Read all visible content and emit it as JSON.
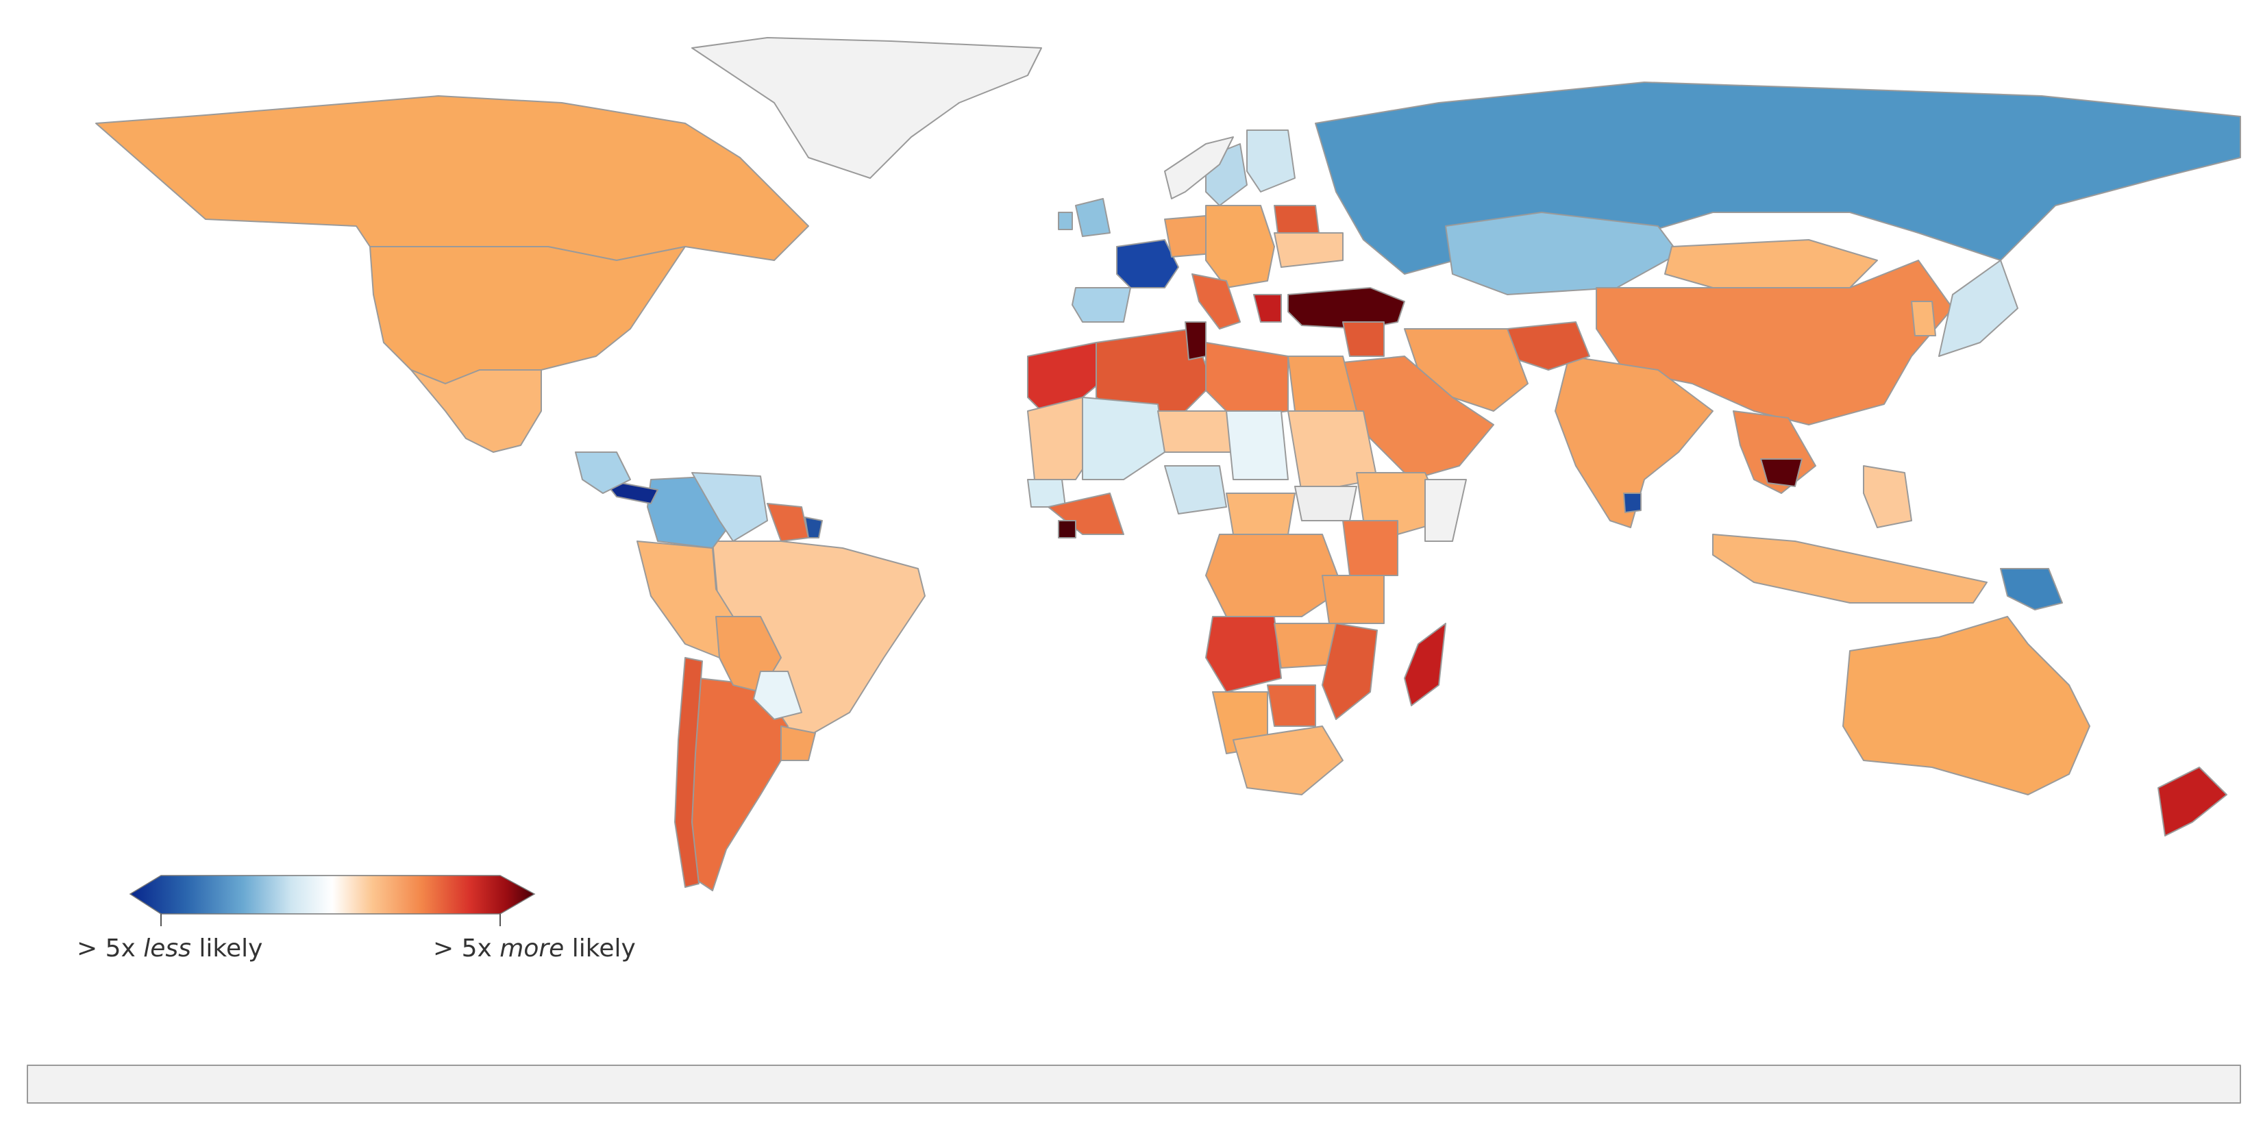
{
  "legend": {
    "left_prefix": "> 5x ",
    "left_emph": "less",
    "left_suffix": " likely",
    "right_prefix": "> 5x ",
    "right_emph": "more",
    "right_suffix": " likely",
    "colorscale": [
      "#08268c",
      "#2b66ae",
      "#6aa9d2",
      "#cfe6f1",
      "#ffffff",
      "#fcc58f",
      "#f3874a",
      "#d8322a",
      "#9b0c12",
      "#4a0008"
    ]
  },
  "palette": {
    "ocean": "#ffffff",
    "no_data": "#f2f2f2",
    "border": "#9a9a9a"
  },
  "countries": [
    {
      "name": "Canada",
      "color": "#f9aa5f"
    },
    {
      "name": "United States",
      "color": "#f9aa5f"
    },
    {
      "name": "Mexico",
      "color": "#fbb776"
    },
    {
      "name": "Greenland",
      "color": "#f2f2f2"
    },
    {
      "name": "Brazil",
      "color": "#fcc99a"
    },
    {
      "name": "Argentina",
      "color": "#eb6f3f"
    },
    {
      "name": "Chile",
      "color": "#e05a35"
    },
    {
      "name": "Peru",
      "color": "#fbb776"
    },
    {
      "name": "Colombia",
      "color": "#72b0d9"
    },
    {
      "name": "Venezuela",
      "color": "#bcdcee"
    },
    {
      "name": "Bolivia",
      "color": "#f7a25d"
    },
    {
      "name": "Paraguay",
      "color": "#e8f4f9"
    },
    {
      "name": "Uruguay",
      "color": "#f7a25d"
    },
    {
      "name": "Guyana",
      "color": "#e86a3e"
    },
    {
      "name": "French Guiana",
      "color": "#2050a0"
    },
    {
      "name": "Panama",
      "color": "#0e2a8c"
    },
    {
      "name": "Central America",
      "color": "#a9d2e9"
    },
    {
      "name": "Russia",
      "color": "#5096c5"
    },
    {
      "name": "Kazakhstan",
      "color": "#8fc2df"
    },
    {
      "name": "Mongolia",
      "color": "#fbb776"
    },
    {
      "name": "China",
      "color": "#f2894e"
    },
    {
      "name": "India",
      "color": "#f7a25d"
    },
    {
      "name": "Afghanistan",
      "color": "#e05a35"
    },
    {
      "name": "Iran",
      "color": "#f7a25d"
    },
    {
      "name": "Saudi Arabia",
      "color": "#f2894e"
    },
    {
      "name": "Turkey",
      "color": "#5a0008"
    },
    {
      "name": "Syria",
      "color": "#e05a35"
    },
    {
      "name": "Southeast Asia",
      "color": "#f2894e"
    },
    {
      "name": "Cambodia",
      "color": "#5a0008"
    },
    {
      "name": "Japan",
      "color": "#cfe6f1"
    },
    {
      "name": "Korea",
      "color": "#fbb776"
    },
    {
      "name": "Indonesia",
      "color": "#fbb776"
    },
    {
      "name": "Philippines",
      "color": "#fcc99a"
    },
    {
      "name": "Papua New Guinea",
      "color": "#3f85bd"
    },
    {
      "name": "Sri Lanka",
      "color": "#1c4aa0"
    },
    {
      "name": "Australia",
      "color": "#f9aa5f"
    },
    {
      "name": "New Zealand",
      "color": "#c41e1e"
    },
    {
      "name": "France",
      "color": "#1946a6"
    },
    {
      "name": "Spain",
      "color": "#a9d2e9"
    },
    {
      "name": "Sweden",
      "color": "#b7d8ea"
    },
    {
      "name": "Finland",
      "color": "#cfe6f1"
    },
    {
      "name": "Norway",
      "color": "#f2f2f2"
    },
    {
      "name": "United Kingdom",
      "color": "#8fc2df"
    },
    {
      "name": "Ireland",
      "color": "#8fc2df"
    },
    {
      "name": "Germany",
      "color": "#f7a25d"
    },
    {
      "name": "Central Europe",
      "color": "#f9aa5f"
    },
    {
      "name": "Italy",
      "color": "#e8683d"
    },
    {
      "name": "Greece",
      "color": "#c41e1e"
    },
    {
      "name": "Ukraine",
      "color": "#fcc99a"
    },
    {
      "name": "Belarus",
      "color": "#e05a35"
    },
    {
      "name": "Morocco",
      "color": "#d8322a"
    },
    {
      "name": "Algeria",
      "color": "#e05a35"
    },
    {
      "name": "Tunisia",
      "color": "#5a0008"
    },
    {
      "name": "Libya",
      "color": "#f07b47"
    },
    {
      "name": "Egypt",
      "color": "#f7a25d"
    },
    {
      "name": "Mauritania",
      "color": "#fcc99a"
    },
    {
      "name": "Mali",
      "color": "#d7ecf4"
    },
    {
      "name": "Niger",
      "color": "#fcc99a"
    },
    {
      "name": "Chad",
      "color": "#e8f4f9"
    },
    {
      "name": "Sudan",
      "color": "#fcc99a"
    },
    {
      "name": "Ethiopia",
      "color": "#fbb776"
    },
    {
      "name": "Somalia",
      "color": "#f2f2f2"
    },
    {
      "name": "Senegal",
      "color": "#d7ecf4"
    },
    {
      "name": "Guinea",
      "color": "#e86a3e"
    },
    {
      "name": "Sierra Leone",
      "color": "#4a0008"
    },
    {
      "name": "Nigeria",
      "color": "#cfe6f1"
    },
    {
      "name": "Central African Republic",
      "color": "#fbb776"
    },
    {
      "name": "South Sudan",
      "color": "#eeeeee"
    },
    {
      "name": "DR Congo",
      "color": "#f7a25d"
    },
    {
      "name": "Kenya",
      "color": "#f07b47"
    },
    {
      "name": "Tanzania",
      "color": "#f7a25d"
    },
    {
      "name": "Angola",
      "color": "#dc3f2e"
    },
    {
      "name": "Zambia",
      "color": "#f7a25d"
    },
    {
      "name": "Mozambique",
      "color": "#e05a35"
    },
    {
      "name": "Namibia",
      "color": "#f9aa5f"
    },
    {
      "name": "Botswana",
      "color": "#e86a3e"
    },
    {
      "name": "South Africa",
      "color": "#fbb776"
    },
    {
      "name": "Madagascar",
      "color": "#c41e1e"
    },
    {
      "name": "Antarctica",
      "color": "#f2f2f2"
    }
  ]
}
